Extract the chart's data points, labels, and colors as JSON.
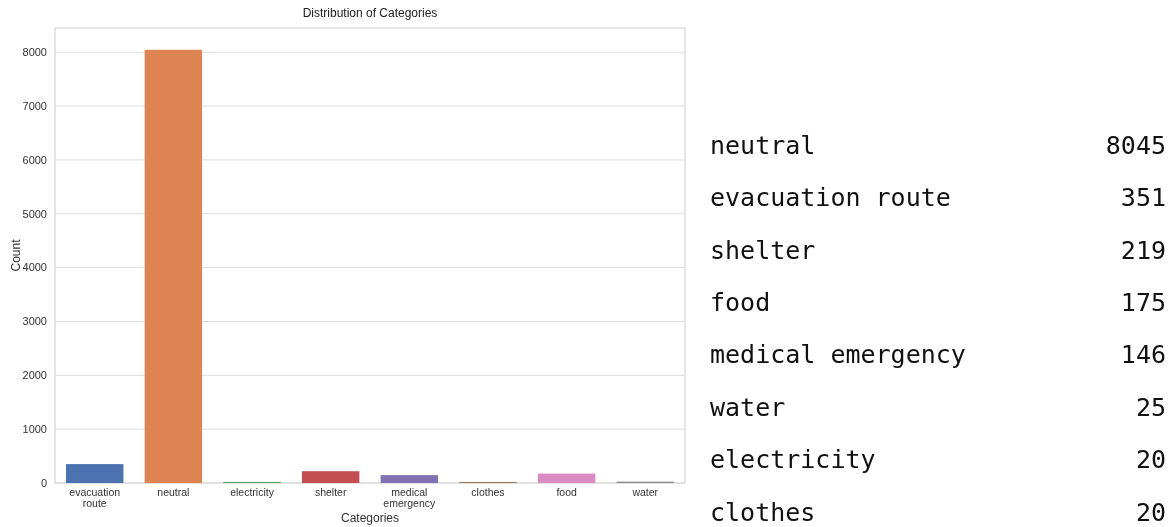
{
  "chart_data": [
    {
      "type": "bar",
      "title": "Distribution of Categories",
      "xlabel": "Categories",
      "ylabel": "Count",
      "categories": [
        "evacuation route",
        "neutral",
        "electricity",
        "shelter",
        "medical emergency",
        "clothes",
        "food",
        "water"
      ],
      "values": [
        351,
        8045,
        20,
        219,
        146,
        20,
        175,
        25
      ],
      "colors": [
        "#4c72b0",
        "#dd8452",
        "#55a868",
        "#c44e52",
        "#8172b3",
        "#937860",
        "#da8bc3",
        "#8c8c8c"
      ],
      "ylim": [
        0,
        8450
      ],
      "yticks": [
        0,
        1000,
        2000,
        3000,
        4000,
        5000,
        6000,
        7000,
        8000
      ],
      "grid": "y"
    },
    {
      "type": "other",
      "categories": [
        "neutral",
        "evacuation route",
        "shelter",
        "food",
        "medical emergency",
        "water",
        "electricity",
        "clothes"
      ],
      "values": [
        8045,
        351,
        219,
        175,
        146,
        25,
        20,
        20
      ],
      "data_labels": true
    }
  ]
}
